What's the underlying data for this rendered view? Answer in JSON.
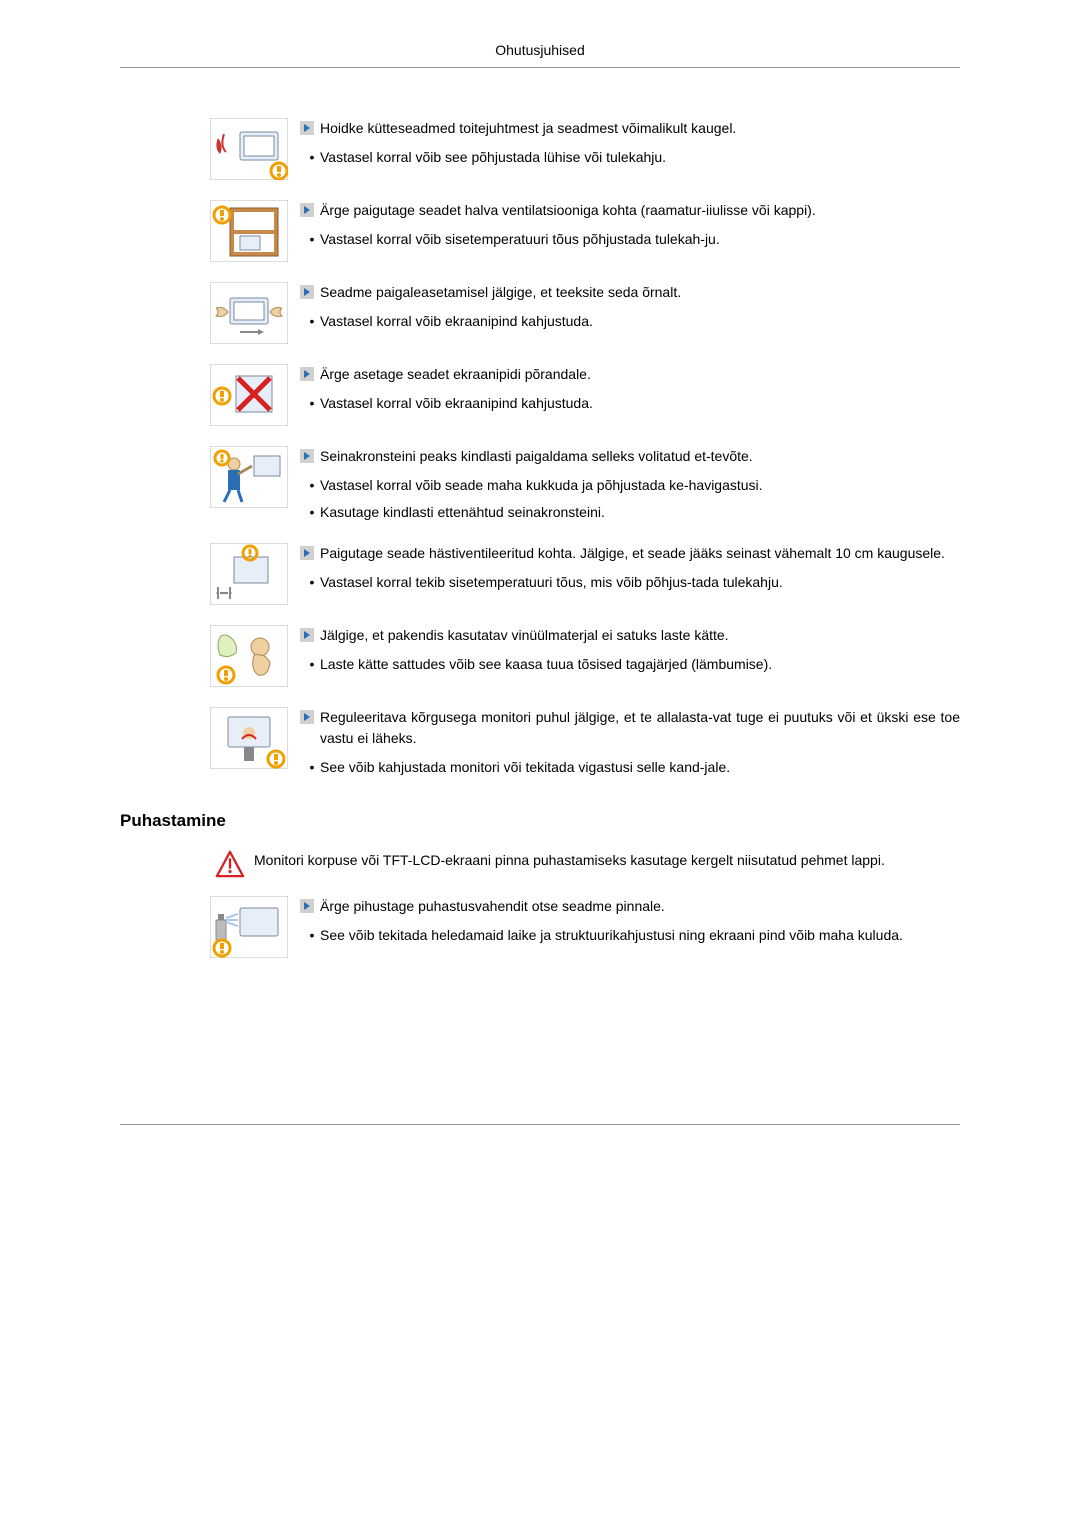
{
  "header": "Ohutusjuhised",
  "colors": {
    "bullet_bg": "#d0d0d0",
    "bullet_arrow": "#2a6fb5",
    "warn_red": "#d92020",
    "warn_yellow": "#f0a000",
    "info_blue": "#2a6fb5"
  },
  "items": [
    {
      "icon": "heater",
      "main": "Hoidke kütteseadmed toitejuhtmest ja seadmest võimalikult kaugel.",
      "subs": [
        "Vastasel korral võib see põhjustada lühise või tulekahju."
      ]
    },
    {
      "icon": "badvent",
      "main": "Ärge paigutage seadet halva ventilatsiooniga kohta (raamatur-iiulisse või kappi).",
      "subs": [
        "Vastasel korral võib sisetemperatuuri tõus põhjustada tulekah-ju."
      ]
    },
    {
      "icon": "place",
      "main": "Seadme paigaleasetamisel jälgige, et teeksite seda õrnalt.",
      "subs": [
        "Vastasel korral võib ekraanipind kahjustuda."
      ]
    },
    {
      "icon": "facedown",
      "main": "Ärge asetage seadet ekraanipidi põrandale.",
      "subs": [
        "Vastasel korral võib ekraanipind kahjustuda."
      ]
    },
    {
      "icon": "wallmount",
      "main": "Seinakronsteini peaks kindlasti paigaldama selleks volitatud et-tevõte.",
      "subs": [
        "Vastasel korral võib seade maha kukkuda ja põhjustada ke-havigastusi.",
        "Kasutage kindlasti ettenähtud seinakronsteini."
      ]
    },
    {
      "icon": "ventilate",
      "main": "Paigutage seade hästiventileeritud kohta. Jälgige, et seade jääks seinast vähemalt 10 cm kaugusele.",
      "subs": [
        "Vastasel korral tekib sisetemperatuuri tõus, mis võib põhjus-tada tulekahju."
      ]
    },
    {
      "icon": "vinyl",
      "main": "Jälgige, et pakendis kasutatav vinüülmaterjal ei satuks laste kätte.",
      "subs": [
        "Laste kätte sattudes võib see kaasa tuua tõsised tagajärjed (lämbumise)."
      ]
    },
    {
      "icon": "height",
      "main": "Reguleeritava kõrgusega monitori puhul jälgige, et te allalasta-vat tuge ei puutuks või et ükski ese toe vastu ei läheks.",
      "subs": [
        "See võib kahjustada monitori või tekitada vigastusi selle kand-jale."
      ]
    }
  ],
  "cleaning": {
    "title": "Puhastamine",
    "intro": "Monitori korpuse või TFT-LCD-ekraani pinna puhastamiseks kasutage kergelt niisutatud pehmet lappi.",
    "items": [
      {
        "icon": "spray",
        "main": "Ärge pihustage puhastusvahendit otse seadme pinnale.",
        "subs": [
          "See võib tekitada heledamaid laike ja struktuurikahjustusi ning ekraani pind võib maha kuluda."
        ]
      }
    ]
  }
}
